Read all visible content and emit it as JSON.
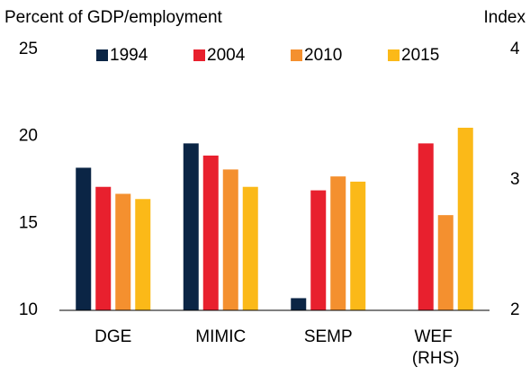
{
  "chart_data": {
    "type": "bar",
    "y_label": "Percent of GDP/employment",
    "y2_label": "Index",
    "categories": [
      "DGE",
      "MIMIC",
      "SEMP",
      "WEF (RHS)"
    ],
    "series": [
      {
        "name": "1994",
        "color": "#0b2545",
        "values": [
          18.2,
          19.6,
          10.7,
          null
        ]
      },
      {
        "name": "2004",
        "color": "#e8202e",
        "values": [
          17.1,
          18.9,
          16.9,
          null
        ]
      },
      {
        "name": "2010",
        "color": "#f4902f",
        "values": [
          16.7,
          18.1,
          17.7,
          null
        ]
      },
      {
        "name": "2015",
        "color": "#fbb918",
        "values": [
          16.4,
          17.1,
          17.4,
          null
        ]
      },
      {
        "name": "1994",
        "color": "#0b2545",
        "axis": "y2",
        "values": [
          null,
          null,
          null,
          null
        ]
      },
      {
        "name": "2004",
        "color": "#e8202e",
        "axis": "y2",
        "values": [
          null,
          null,
          null,
          3.28
        ]
      },
      {
        "name": "2010",
        "color": "#f4902f",
        "axis": "y2",
        "values": [
          null,
          null,
          null,
          2.73
        ]
      },
      {
        "name": "2015",
        "color": "#fbb918",
        "axis": "y2",
        "values": [
          null,
          null,
          null,
          3.4
        ]
      }
    ],
    "ylim": [
      10,
      25
    ],
    "yticks": [
      10,
      15,
      20,
      25
    ],
    "y2lim": [
      2,
      4
    ],
    "y2ticks": [
      2,
      3,
      4
    ],
    "grid": false
  }
}
